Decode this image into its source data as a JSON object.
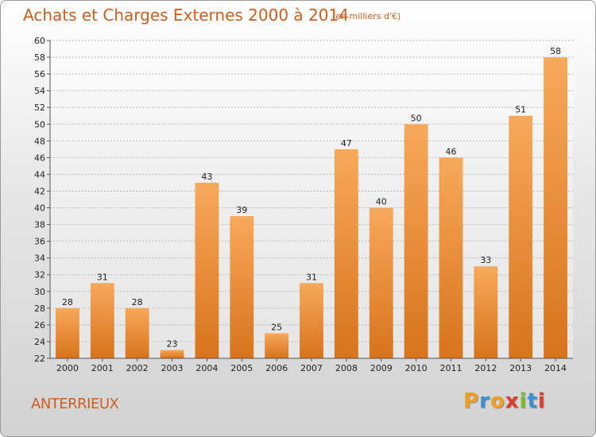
{
  "header": {
    "title": "Achats et Charges Externes 2000 à 2014",
    "subtitle": "(en milliers d'€)"
  },
  "footer": {
    "commune": "ANTERRIEUX",
    "logo": {
      "letters": [
        "P",
        "r",
        "o",
        "x",
        "i",
        "t",
        "i"
      ],
      "colors": [
        "#f0a020",
        "#3a8fd6",
        "#f0a020",
        "#e03c2c",
        "#7cba2a",
        "#3a8fd6",
        "#e03c2c"
      ]
    }
  },
  "colors": {
    "bar_top": "#f7a95a",
    "bar_bottom": "#d8731c",
    "title": "#cc5f1f"
  },
  "chart_data": {
    "type": "bar",
    "title": "Achats et Charges Externes 2000 à 2014",
    "categories": [
      "2000",
      "2001",
      "2002",
      "2003",
      "2004",
      "2005",
      "2006",
      "2007",
      "2008",
      "2009",
      "2010",
      "2011",
      "2012",
      "2013",
      "2014"
    ],
    "values": [
      28,
      31,
      28,
      23,
      43,
      39,
      25,
      31,
      47,
      40,
      50,
      46,
      33,
      51,
      58
    ],
    "ylim": [
      22,
      60
    ],
    "ytick_step": 2,
    "grid": true,
    "legend": "none"
  }
}
